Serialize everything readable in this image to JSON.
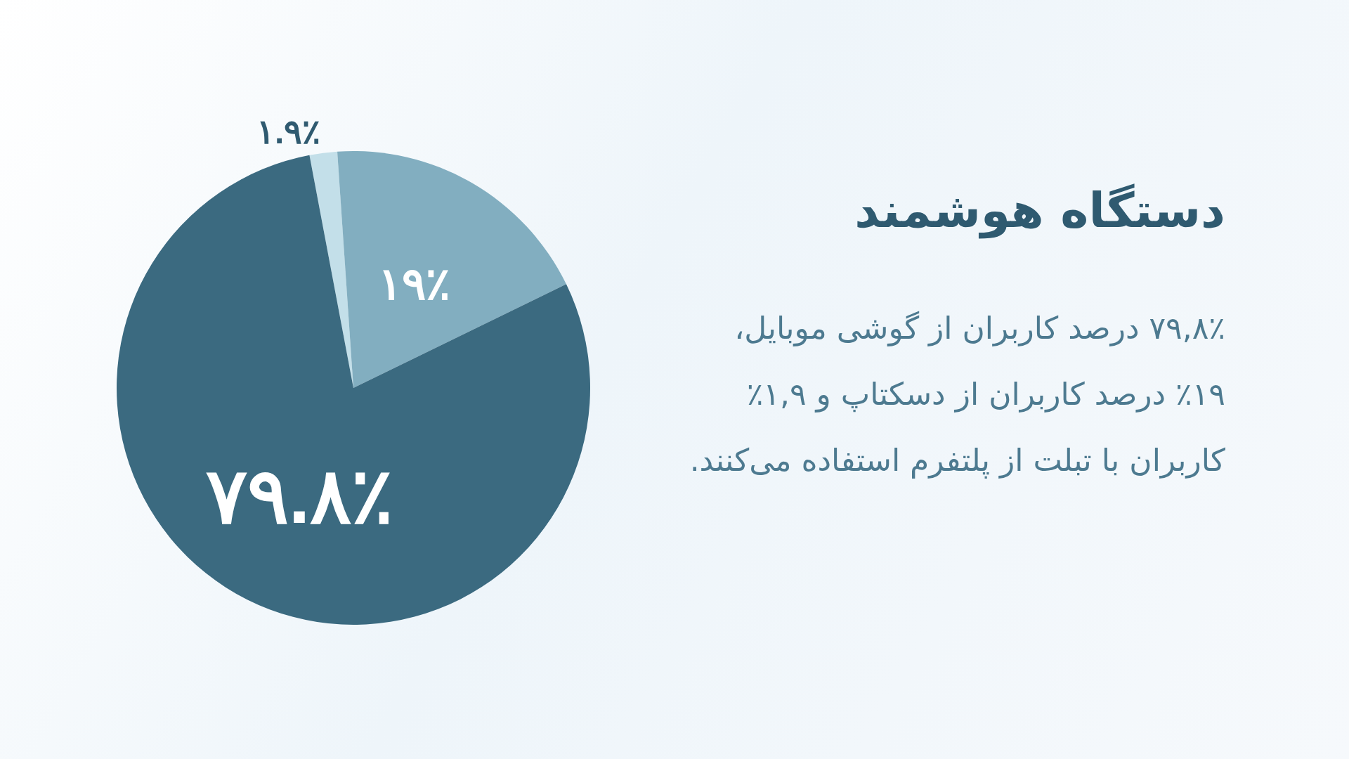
{
  "chart_data": {
    "type": "pie",
    "title": "دستگاه هوشمند",
    "annotations": [
      "۷۹,۸٪ درصد کاربران از گوشی موبایل، ۱۹٪ درصد کاربران از دسکتاپ و ۱,۹٪ کاربران با تبلت از پلتفرم استفاده می‌کنند."
    ],
    "categories": [
      null,
      null,
      null
    ],
    "values": [
      1.9,
      19,
      79.8
    ],
    "value_labels": [
      "۱.۹٪",
      "۱۹٪",
      "۷۹.۸٪"
    ],
    "colors": [
      "#c3dfe9",
      "#82aec0",
      "#3b6a80"
    ]
  }
}
